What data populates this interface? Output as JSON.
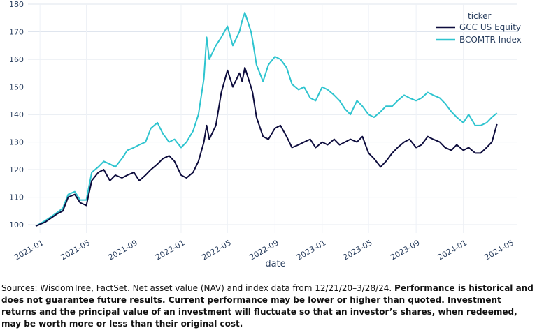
{
  "chart_data": {
    "type": "line",
    "title": "",
    "xlabel": "date",
    "ylabel": "",
    "ylim": [
      97,
      180
    ],
    "yticks": [
      "100",
      "110",
      "120",
      "130",
      "140",
      "150",
      "160",
      "170",
      "180"
    ],
    "xticks": [
      "2021-01",
      "2021-05",
      "2021-09",
      "2022-01",
      "2022-05",
      "2022-09",
      "2023-01",
      "2023-05",
      "2023-09",
      "2024-01",
      "2024-05"
    ],
    "legend": {
      "title": "ticker",
      "placement": "top-right"
    },
    "grid": true,
    "x": [
      "2020-12-21",
      "2021-01-15",
      "2021-02-15",
      "2021-03-01",
      "2021-03-15",
      "2021-04-01",
      "2021-04-15",
      "2021-05-01",
      "2021-05-15",
      "2021-06-01",
      "2021-06-15",
      "2021-07-01",
      "2021-07-15",
      "2021-08-01",
      "2021-08-15",
      "2021-09-01",
      "2021-09-15",
      "2021-10-01",
      "2021-10-15",
      "2021-11-01",
      "2021-11-15",
      "2021-12-01",
      "2021-12-15",
      "2022-01-01",
      "2022-01-15",
      "2022-02-01",
      "2022-02-15",
      "2022-03-01",
      "2022-03-08",
      "2022-03-15",
      "2022-04-01",
      "2022-04-15",
      "2022-05-01",
      "2022-05-15",
      "2022-06-01",
      "2022-06-08",
      "2022-06-15",
      "2022-07-01",
      "2022-07-05",
      "2022-07-15",
      "2022-08-01",
      "2022-08-15",
      "2022-09-01",
      "2022-09-15",
      "2022-10-01",
      "2022-10-15",
      "2022-11-01",
      "2022-11-15",
      "2022-12-01",
      "2022-12-15",
      "2023-01-01",
      "2023-01-15",
      "2023-02-01",
      "2023-02-15",
      "2023-03-01",
      "2023-03-15",
      "2023-04-01",
      "2023-04-15",
      "2023-05-01",
      "2023-05-15",
      "2023-06-01",
      "2023-06-15",
      "2023-07-01",
      "2023-07-15",
      "2023-08-01",
      "2023-08-15",
      "2023-09-01",
      "2023-09-15",
      "2023-10-01",
      "2023-10-15",
      "2023-11-01",
      "2023-11-15",
      "2023-12-01",
      "2023-12-15",
      "2024-01-01",
      "2024-01-15",
      "2024-02-01",
      "2024-02-15",
      "2024-03-01",
      "2024-03-15",
      "2024-03-28"
    ],
    "series": [
      {
        "name": "GCC US Equity",
        "color": "#0d0c3d",
        "values": [
          99.5,
          101,
          104,
          105,
          110,
          111,
          108,
          107,
          116,
          119,
          120,
          116,
          118,
          117,
          118,
          119,
          116,
          118,
          120,
          122,
          124,
          125,
          123,
          118,
          117,
          119,
          123,
          130,
          136,
          131,
          136,
          148,
          156,
          150,
          155,
          152,
          157,
          150,
          148,
          139,
          132,
          131,
          135,
          136,
          132,
          128,
          129,
          130,
          131,
          128,
          130,
          129,
          131,
          129,
          130,
          131,
          130,
          132,
          126,
          124,
          121,
          123,
          126,
          128,
          130,
          131,
          128,
          129,
          132,
          131,
          130,
          128,
          127,
          129,
          127,
          128,
          126,
          126,
          128,
          130,
          136.5
        ]
      },
      {
        "name": "BCOMTR Index",
        "color": "#2ec4cf",
        "values": [
          99.5,
          101.5,
          104.5,
          106,
          111,
          112,
          109,
          109,
          119,
          121,
          123,
          122,
          121,
          124,
          127,
          128,
          129,
          130,
          135,
          137,
          133,
          130,
          131,
          128,
          130,
          134,
          140,
          153,
          168,
          160,
          165,
          168,
          172,
          165,
          170,
          174,
          177,
          170,
          167,
          158,
          152,
          158,
          161,
          160,
          157,
          151,
          149,
          150,
          146,
          145,
          150,
          149,
          147,
          145,
          142,
          140,
          145,
          143,
          140,
          139,
          141,
          143,
          143,
          145,
          147,
          146,
          145,
          146,
          148,
          147,
          146,
          144,
          141,
          139,
          137,
          140,
          136,
          136,
          137,
          139,
          140.5
        ]
      }
    ]
  },
  "footnote": {
    "plain": "Sources: WisdomTree, FactSet. Net asset value (NAV) and index data from 12/21/20–3/28/24. ",
    "bold": "Performance is historical and does not guarantee future results. Current performance may be lower or higher than quoted. Investment returns and the principal value of an investment will fluctuate so that an investor’s shares, when redeemed, may be worth more or less than their original cost."
  }
}
